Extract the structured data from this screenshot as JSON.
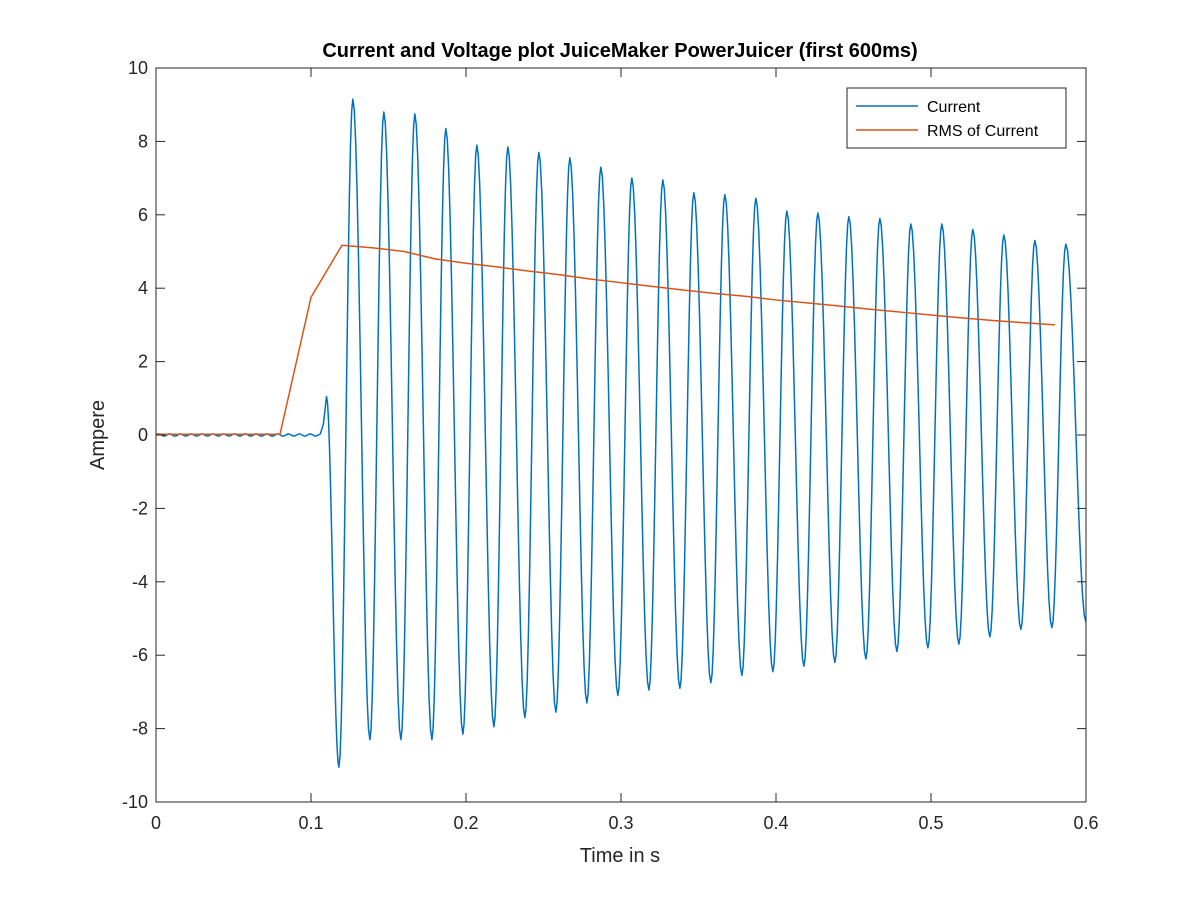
{
  "chart_data": {
    "type": "line",
    "title": "Current and Voltage plot JuiceMaker PowerJuicer (first 600ms)",
    "xlabel": "Time in s",
    "ylabel": "Ampere",
    "xlim": [
      0,
      0.6
    ],
    "ylim": [
      -10,
      10
    ],
    "xticks": [
      0,
      0.1,
      0.2,
      0.3,
      0.4,
      0.5,
      0.6
    ],
    "xtick_labels": [
      "0",
      "0.1",
      "0.2",
      "0.3",
      "0.4",
      "0.5",
      "0.6"
    ],
    "yticks": [
      -10,
      -8,
      -6,
      -4,
      -2,
      0,
      2,
      4,
      6,
      8,
      10
    ],
    "ytick_labels": [
      "-10",
      "-8",
      "-6",
      "-4",
      "-2",
      "0",
      "2",
      "4",
      "6",
      "8",
      "10"
    ],
    "grid": false,
    "legend_position": "top-right",
    "series": [
      {
        "name": "Current",
        "color": "#0072BD",
        "form": "oscillation",
        "baseline": {
          "x": [
            0,
            0.107
          ],
          "y": 0
        },
        "precursor": {
          "x": 0.11,
          "y": 1.05
        },
        "peaks": {
          "x": [
            0.127,
            0.147,
            0.167,
            0.187,
            0.207,
            0.227,
            0.247,
            0.267,
            0.287,
            0.307,
            0.327,
            0.347,
            0.367,
            0.387,
            0.407,
            0.427,
            0.447,
            0.467,
            0.487,
            0.507,
            0.527,
            0.547,
            0.567,
            0.587
          ],
          "y": [
            9.15,
            8.8,
            8.75,
            8.35,
            7.9,
            7.85,
            7.7,
            7.55,
            7.3,
            7.0,
            6.95,
            6.6,
            6.55,
            6.45,
            6.1,
            6.05,
            5.95,
            5.9,
            5.75,
            5.75,
            5.6,
            5.45,
            5.3,
            5.2
          ]
        },
        "troughs": {
          "x": [
            0.118,
            0.138,
            0.158,
            0.178,
            0.198,
            0.218,
            0.238,
            0.258,
            0.278,
            0.298,
            0.318,
            0.338,
            0.358,
            0.378,
            0.398,
            0.418,
            0.438,
            0.458,
            0.478,
            0.498,
            0.518,
            0.538,
            0.558,
            0.578,
            0.6
          ],
          "y": [
            -9.05,
            -8.3,
            -8.3,
            -8.3,
            -8.15,
            -7.95,
            -7.7,
            -7.55,
            -7.3,
            -7.1,
            -6.95,
            -6.9,
            -6.75,
            -6.55,
            -6.45,
            -6.3,
            -6.2,
            -6.1,
            -5.9,
            -5.8,
            -5.7,
            -5.5,
            -5.3,
            -5.25,
            -5.1
          ]
        }
      },
      {
        "name": "RMS of Current",
        "color": "#D95319",
        "x": [
          0,
          0.02,
          0.04,
          0.06,
          0.08,
          0.1,
          0.12,
          0.14,
          0.16,
          0.18,
          0.2,
          0.22,
          0.24,
          0.26,
          0.28,
          0.3,
          0.32,
          0.34,
          0.36,
          0.38,
          0.4,
          0.42,
          0.44,
          0.46,
          0.48,
          0.5,
          0.52,
          0.54,
          0.56,
          0.58
        ],
        "y": [
          0.02,
          0.02,
          0.02,
          0.02,
          0.02,
          3.75,
          5.17,
          5.1,
          5.0,
          4.8,
          4.68,
          4.58,
          4.47,
          4.37,
          4.25,
          4.15,
          4.05,
          3.95,
          3.86,
          3.78,
          3.68,
          3.6,
          3.52,
          3.43,
          3.35,
          3.27,
          3.19,
          3.12,
          3.06,
          3.0
        ]
      }
    ]
  }
}
